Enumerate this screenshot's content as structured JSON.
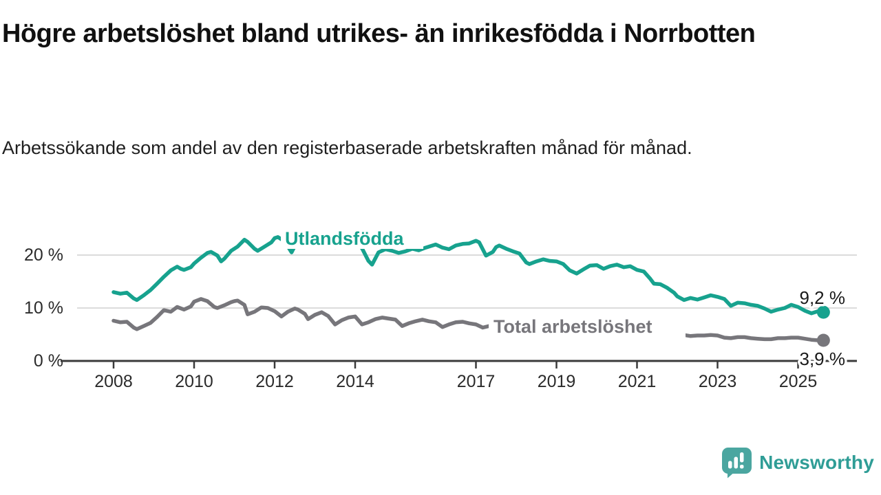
{
  "title": "Högre arbetslöshet bland utrikes- än inrikesfödda i Norrbotten",
  "subtitle": "Arbetssökande som andel av den registerbaserade arbetskraften månad för månad.",
  "branding": {
    "logo_text": "Newsworthy"
  },
  "colors": {
    "accent_teal": "#17A28E",
    "series_gray": "#77767B",
    "grid": "#DBDBDB",
    "axis": "#3A3A3A",
    "text_dark": "#1A1A1A",
    "tick_label": "#2B2B2B",
    "logo_teal": "#4BA6A0",
    "logo_text": "#2F9D96"
  },
  "chart_data": {
    "type": "line",
    "title": "Högre arbetslöshet bland utrikes- än inrikesfödda i Norrbotten",
    "subtitle": "Arbetssökande som andel av den registerbaserade arbetskraften månad för månad.",
    "unit": "%",
    "grid": "horizontal",
    "legend_position": "inline-labels",
    "xlim": [
      2007.4,
      2026.4
    ],
    "ylim": [
      0,
      25
    ],
    "x_ticks": [
      2008,
      2010,
      2012,
      2014,
      2017,
      2019,
      2021,
      2023,
      2025
    ],
    "x_tick_labels": [
      "2008",
      "2010",
      "2012",
      "2014",
      "2017",
      "2019",
      "2021",
      "2023",
      "2025"
    ],
    "y_ticks": [
      {
        "value": 0,
        "label": "0 %"
      },
      {
        "value": 10,
        "label": "10 %"
      },
      {
        "value": 20,
        "label": "20 %"
      }
    ],
    "series": [
      {
        "name": "Utlandsfödda",
        "color": "#17A28E",
        "end_value": 9.2,
        "end_label": "9,2 %",
        "points": [
          [
            2008.0,
            13.0
          ],
          [
            2008.17,
            12.7
          ],
          [
            2008.33,
            12.9
          ],
          [
            2008.5,
            11.8
          ],
          [
            2008.58,
            11.5
          ],
          [
            2008.75,
            12.4
          ],
          [
            2008.92,
            13.4
          ],
          [
            2009.08,
            14.6
          ],
          [
            2009.25,
            15.9
          ],
          [
            2009.42,
            17.1
          ],
          [
            2009.58,
            17.8
          ],
          [
            2009.67,
            17.4
          ],
          [
            2009.75,
            17.2
          ],
          [
            2009.92,
            17.7
          ],
          [
            2010.0,
            18.4
          ],
          [
            2010.17,
            19.5
          ],
          [
            2010.33,
            20.4
          ],
          [
            2010.42,
            20.6
          ],
          [
            2010.58,
            19.9
          ],
          [
            2010.67,
            18.8
          ],
          [
            2010.75,
            19.3
          ],
          [
            2010.92,
            20.8
          ],
          [
            2011.08,
            21.6
          ],
          [
            2011.25,
            22.9
          ],
          [
            2011.33,
            22.5
          ],
          [
            2011.5,
            21.2
          ],
          [
            2011.58,
            20.8
          ],
          [
            2011.75,
            21.6
          ],
          [
            2011.92,
            22.4
          ],
          [
            2012.0,
            23.2
          ],
          [
            2012.08,
            23.4
          ],
          [
            2012.25,
            22.6
          ],
          [
            2012.42,
            20.5
          ],
          [
            2012.5,
            21.7
          ],
          [
            2012.67,
            22.4
          ],
          [
            2012.83,
            22.9
          ],
          [
            2013.0,
            23.1
          ],
          [
            2013.17,
            22.5
          ],
          [
            2013.33,
            21.9
          ],
          [
            2013.5,
            21.5
          ],
          [
            2013.67,
            22.1
          ],
          [
            2013.83,
            22.5
          ],
          [
            2014.0,
            22.3
          ],
          [
            2014.17,
            21.3
          ],
          [
            2014.33,
            18.9
          ],
          [
            2014.42,
            18.2
          ],
          [
            2014.58,
            20.5
          ],
          [
            2014.75,
            21.1
          ],
          [
            2014.92,
            20.8
          ],
          [
            2015.08,
            20.4
          ],
          [
            2015.25,
            20.7
          ],
          [
            2015.42,
            21.2
          ],
          [
            2015.58,
            20.9
          ],
          [
            2015.75,
            21.4
          ],
          [
            2015.92,
            21.8
          ],
          [
            2016.0,
            22.0
          ],
          [
            2016.17,
            21.4
          ],
          [
            2016.33,
            21.1
          ],
          [
            2016.5,
            21.8
          ],
          [
            2016.67,
            22.1
          ],
          [
            2016.83,
            22.2
          ],
          [
            2017.0,
            22.7
          ],
          [
            2017.08,
            22.4
          ],
          [
            2017.25,
            19.9
          ],
          [
            2017.42,
            20.6
          ],
          [
            2017.5,
            21.5
          ],
          [
            2017.58,
            21.8
          ],
          [
            2017.75,
            21.2
          ],
          [
            2017.92,
            20.7
          ],
          [
            2018.08,
            20.3
          ],
          [
            2018.25,
            18.6
          ],
          [
            2018.33,
            18.3
          ],
          [
            2018.5,
            18.8
          ],
          [
            2018.67,
            19.2
          ],
          [
            2018.83,
            18.9
          ],
          [
            2019.0,
            18.8
          ],
          [
            2019.17,
            18.3
          ],
          [
            2019.33,
            17.1
          ],
          [
            2019.5,
            16.5
          ],
          [
            2019.67,
            17.3
          ],
          [
            2019.83,
            18.0
          ],
          [
            2020.0,
            18.1
          ],
          [
            2020.17,
            17.4
          ],
          [
            2020.33,
            17.9
          ],
          [
            2020.5,
            18.2
          ],
          [
            2020.67,
            17.7
          ],
          [
            2020.83,
            17.9
          ],
          [
            2021.0,
            17.2
          ],
          [
            2021.17,
            16.9
          ],
          [
            2021.33,
            15.5
          ],
          [
            2021.42,
            14.6
          ],
          [
            2021.58,
            14.5
          ],
          [
            2021.75,
            13.8
          ],
          [
            2021.92,
            12.9
          ],
          [
            2022.0,
            12.2
          ],
          [
            2022.17,
            11.5
          ],
          [
            2022.33,
            11.9
          ],
          [
            2022.5,
            11.6
          ],
          [
            2022.67,
            12.0
          ],
          [
            2022.83,
            12.4
          ],
          [
            2023.0,
            12.1
          ],
          [
            2023.17,
            11.7
          ],
          [
            2023.33,
            10.4
          ],
          [
            2023.5,
            11.0
          ],
          [
            2023.67,
            10.9
          ],
          [
            2023.83,
            10.6
          ],
          [
            2024.0,
            10.4
          ],
          [
            2024.17,
            9.9
          ],
          [
            2024.33,
            9.3
          ],
          [
            2024.5,
            9.7
          ],
          [
            2024.67,
            10.0
          ],
          [
            2024.83,
            10.6
          ],
          [
            2025.0,
            10.2
          ],
          [
            2025.17,
            9.5
          ],
          [
            2025.33,
            9.0
          ],
          [
            2025.5,
            9.4
          ],
          [
            2025.63,
            9.2
          ]
        ]
      },
      {
        "name": "Total arbetslöshet",
        "color": "#77767B",
        "end_value": 3.9,
        "end_label": "3,9 %",
        "points": [
          [
            2008.0,
            7.6
          ],
          [
            2008.17,
            7.3
          ],
          [
            2008.33,
            7.4
          ],
          [
            2008.5,
            6.3
          ],
          [
            2008.58,
            6.0
          ],
          [
            2008.75,
            6.6
          ],
          [
            2008.92,
            7.2
          ],
          [
            2009.08,
            8.3
          ],
          [
            2009.25,
            9.6
          ],
          [
            2009.42,
            9.3
          ],
          [
            2009.58,
            10.2
          ],
          [
            2009.75,
            9.7
          ],
          [
            2009.92,
            10.3
          ],
          [
            2010.0,
            11.2
          ],
          [
            2010.17,
            11.7
          ],
          [
            2010.33,
            11.3
          ],
          [
            2010.5,
            10.2
          ],
          [
            2010.58,
            10.0
          ],
          [
            2010.75,
            10.5
          ],
          [
            2010.92,
            11.1
          ],
          [
            2011.0,
            11.3
          ],
          [
            2011.08,
            11.4
          ],
          [
            2011.25,
            10.6
          ],
          [
            2011.33,
            8.8
          ],
          [
            2011.5,
            9.3
          ],
          [
            2011.67,
            10.1
          ],
          [
            2011.83,
            10.0
          ],
          [
            2012.0,
            9.4
          ],
          [
            2012.17,
            8.4
          ],
          [
            2012.33,
            9.3
          ],
          [
            2012.5,
            9.9
          ],
          [
            2012.58,
            9.7
          ],
          [
            2012.75,
            8.9
          ],
          [
            2012.83,
            7.9
          ],
          [
            2013.0,
            8.7
          ],
          [
            2013.17,
            9.2
          ],
          [
            2013.33,
            8.5
          ],
          [
            2013.5,
            6.9
          ],
          [
            2013.67,
            7.7
          ],
          [
            2013.83,
            8.2
          ],
          [
            2014.0,
            8.4
          ],
          [
            2014.17,
            6.9
          ],
          [
            2014.33,
            7.3
          ],
          [
            2014.5,
            7.9
          ],
          [
            2014.67,
            8.2
          ],
          [
            2014.83,
            8.0
          ],
          [
            2015.0,
            7.8
          ],
          [
            2015.17,
            6.6
          ],
          [
            2015.33,
            7.1
          ],
          [
            2015.5,
            7.5
          ],
          [
            2015.67,
            7.8
          ],
          [
            2015.83,
            7.5
          ],
          [
            2016.0,
            7.3
          ],
          [
            2016.17,
            6.4
          ],
          [
            2016.33,
            6.9
          ],
          [
            2016.5,
            7.3
          ],
          [
            2016.67,
            7.4
          ],
          [
            2016.83,
            7.1
          ],
          [
            2017.0,
            6.9
          ],
          [
            2017.17,
            6.3
          ],
          [
            2017.33,
            6.6
          ],
          [
            2017.5,
            6.9
          ],
          [
            2017.67,
            6.6
          ],
          [
            2017.83,
            6.3
          ],
          [
            2018.0,
            6.2
          ],
          [
            2018.25,
            5.6
          ],
          [
            2018.5,
            5.9
          ],
          [
            2018.75,
            6.1
          ],
          [
            2019.0,
            6.0
          ],
          [
            2019.25,
            5.6
          ],
          [
            2019.5,
            5.9
          ],
          [
            2019.75,
            6.2
          ],
          [
            2020.0,
            6.3
          ],
          [
            2020.25,
            6.7
          ],
          [
            2020.5,
            6.9
          ],
          [
            2020.75,
            6.6
          ],
          [
            2021.0,
            6.4
          ],
          [
            2021.25,
            5.9
          ],
          [
            2021.5,
            5.6
          ],
          [
            2021.75,
            5.3
          ],
          [
            2022.0,
            5.1
          ],
          [
            2022.17,
            4.9
          ],
          [
            2022.33,
            4.7
          ],
          [
            2022.5,
            4.8
          ],
          [
            2022.67,
            4.8
          ],
          [
            2022.83,
            4.9
          ],
          [
            2023.0,
            4.8
          ],
          [
            2023.17,
            4.4
          ],
          [
            2023.33,
            4.3
          ],
          [
            2023.5,
            4.5
          ],
          [
            2023.67,
            4.5
          ],
          [
            2023.83,
            4.3
          ],
          [
            2024.0,
            4.2
          ],
          [
            2024.17,
            4.1
          ],
          [
            2024.33,
            4.1
          ],
          [
            2024.5,
            4.3
          ],
          [
            2024.67,
            4.3
          ],
          [
            2024.83,
            4.4
          ],
          [
            2025.0,
            4.4
          ],
          [
            2025.17,
            4.2
          ],
          [
            2025.33,
            4.0
          ],
          [
            2025.5,
            3.9
          ],
          [
            2025.63,
            3.9
          ]
        ]
      }
    ]
  }
}
